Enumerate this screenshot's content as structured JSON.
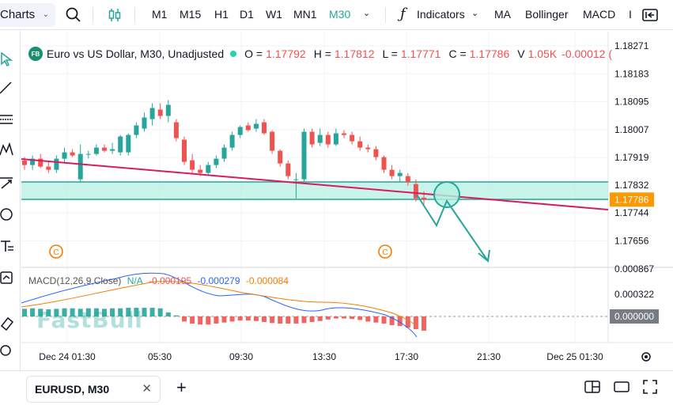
{
  "toolbar": {
    "charts_label": "Charts",
    "timeframes": [
      "M1",
      "M15",
      "H1",
      "D1",
      "W1",
      "MN1",
      "M30"
    ],
    "active_timeframe": "M30",
    "indicators_label": "Indicators",
    "ma_label": "MA",
    "bollinger_label": "Bollinger",
    "macd_label": "MACD"
  },
  "legend": {
    "logo": "FB",
    "symbol_title": "Euro vs US Dollar, M30, Unadjusted",
    "o_label": "O =",
    "o_value": "1.17792",
    "h_label": "H =",
    "h_value": "1.17812",
    "l_label": "L =",
    "l_value": "1.17771",
    "c_label": "C =",
    "c_value": "1.17786",
    "v_label": "V",
    "v_value": "1.05K",
    "change_value": "-0.00012 ("
  },
  "price_axis": [
    "1.18271",
    "1.18183",
    "1.18095",
    "1.18007",
    "1.17919",
    "1.17832",
    "1.17744",
    "1.17656"
  ],
  "current_price": "1.17786",
  "macd_axis": [
    "0.000867",
    "0.000322",
    "0.000000"
  ],
  "macd_legend": {
    "title": "MACD(12,26,9,Close)",
    "na": "N/A",
    "v1": "-0.000195",
    "v2": "-0.000279",
    "v3": "-0.000084"
  },
  "time_axis": [
    "Dec 24 01:30",
    "05:30",
    "09:30",
    "13:30",
    "17:30",
    "21:30",
    "Dec 25 01:30"
  ],
  "watermark": "FastBull",
  "colors": {
    "up": "#26a69a",
    "down": "#ef5350",
    "accent": "#26a69a",
    "trend": "#d81b60",
    "zone": "#b2f0e0"
  },
  "tab": {
    "label": "EURUSD, M30"
  },
  "candles": [
    [
      1.17909,
      1.1792,
      1.1788,
      1.17895
    ],
    [
      1.17895,
      1.17925,
      1.1788,
      1.17915
    ],
    [
      1.17915,
      1.1793,
      1.17885,
      1.1789
    ],
    [
      1.1789,
      1.17905,
      1.1787,
      1.1788
    ],
    [
      1.1788,
      1.17925,
      1.1787,
      1.17915
    ],
    [
      1.17915,
      1.1795,
      1.179,
      1.17935
    ],
    [
      1.17935,
      1.17945,
      1.1792,
      1.17925
    ],
    [
      1.1785,
      1.1796,
      1.1784,
      1.1793
    ],
    [
      1.1793,
      1.1794,
      1.17915,
      1.1793
    ],
    [
      1.1793,
      1.1796,
      1.17925,
      1.1795
    ],
    [
      1.1795,
      1.1796,
      1.17935,
      1.1794
    ],
    [
      1.1794,
      1.17965,
      1.1793,
      1.17945
    ],
    [
      1.17935,
      1.1799,
      1.17925,
      1.17985
    ],
    [
      1.17935,
      1.17995,
      1.17925,
      1.1799
    ],
    [
      1.1799,
      1.1803,
      1.1798,
      1.1802
    ],
    [
      1.1801,
      1.1806,
      1.18,
      1.18045
    ],
    [
      1.1804,
      1.1809,
      1.1802,
      1.18075
    ],
    [
      1.1807,
      1.1809,
      1.1804,
      1.1805
    ],
    [
      1.1805,
      1.181,
      1.1803,
      1.18085
    ],
    [
      1.1803,
      1.1804,
      1.1797,
      1.1798
    ],
    [
      1.17975,
      1.17985,
      1.17895,
      1.17905
    ],
    [
      1.1791,
      1.1793,
      1.1787,
      1.1788
    ],
    [
      1.1788,
      1.17895,
      1.1786,
      1.1787
    ],
    [
      1.1787,
      1.17905,
      1.1786,
      1.17895
    ],
    [
      1.17895,
      1.17925,
      1.17885,
      1.17915
    ],
    [
      1.17915,
      1.1796,
      1.17905,
      1.1795
    ],
    [
      1.1795,
      1.18,
      1.1794,
      1.1799
    ],
    [
      1.1799,
      1.1802,
      1.1798,
      1.18015
    ],
    [
      1.1802,
      1.1803,
      1.18,
      1.18005
    ],
    [
      1.1801,
      1.1804,
      1.18,
      1.18025
    ],
    [
      1.1803,
      1.1804,
      1.1799,
      1.17995
    ],
    [
      1.18,
      1.18005,
      1.1793,
      1.1794
    ],
    [
      1.1794,
      1.17945,
      1.1789,
      1.179
    ],
    [
      1.179,
      1.1791,
      1.1785,
      1.1786
    ],
    [
      1.1785,
      1.1787,
      1.1779,
      1.1785
    ],
    [
      1.1785,
      1.1801,
      1.1784,
      1.18
    ],
    [
      1.18,
      1.1801,
      1.1795,
      1.1796
    ],
    [
      1.17965,
      1.1801,
      1.17955,
      1.1799
    ],
    [
      1.1799,
      1.18,
      1.1795,
      1.1796
    ],
    [
      1.1796,
      1.1801,
      1.17955,
      1.17995
    ],
    [
      1.17995,
      1.18005,
      1.1798,
      1.1799
    ],
    [
      1.1799,
      1.18,
      1.1796,
      1.1797
    ],
    [
      1.1797,
      1.17985,
      1.1794,
      1.1795
    ],
    [
      1.1795,
      1.1796,
      1.17935,
      1.17945
    ],
    [
      1.17945,
      1.17955,
      1.1791,
      1.1792
    ],
    [
      1.1792,
      1.17925,
      1.1787,
      1.1788
    ],
    [
      1.1788,
      1.17895,
      1.1785,
      1.1786
    ],
    [
      1.1786,
      1.1788,
      1.1784,
      1.1787
    ],
    [
      1.1786,
      1.1787,
      1.1783,
      1.1784
    ],
    [
      1.17835,
      1.1785,
      1.1778,
      1.1779
    ],
    [
      1.17792,
      1.17812,
      1.17771,
      1.17786
    ]
  ],
  "macd_hist": [
    0.00015,
    0.00016,
    0.00015,
    0.00014,
    0.00015,
    0.00016,
    0.00016,
    0.00015,
    0.00016,
    0.00016,
    0.00015,
    0.00016,
    0.00016,
    0.00017,
    0.00017,
    0.00017,
    0.00017,
    0.00016,
    8e-05,
    2e-05,
    -0.0001,
    -0.00014,
    -0.00016,
    -0.00016,
    -0.00014,
    -0.00012,
    -0.0001,
    -8e-05,
    -8e-05,
    -9e-05,
    -0.00011,
    -0.00013,
    -0.00014,
    -0.00014,
    -0.00014,
    -0.00013,
    -0.00011,
    -9e-05,
    -6e-05,
    -4e-05,
    -4e-05,
    -5e-05,
    -7e-05,
    -0.0001,
    -0.00012,
    -0.00014,
    -0.00017,
    -0.00019,
    -0.00022,
    -0.00025,
    -0.00028
  ]
}
